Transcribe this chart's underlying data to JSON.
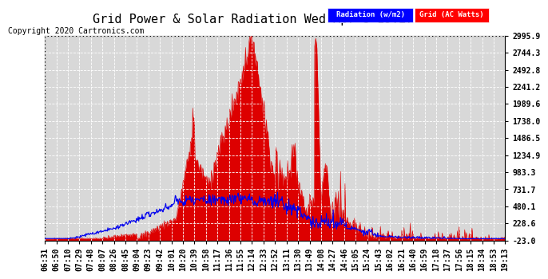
{
  "title": "Grid Power & Solar Radiation Wed Apr 8 19:27",
  "copyright": "Copyright 2020 Cartronics.com",
  "legend_radiation": "Radiation (w/m2)",
  "legend_grid": "Grid (AC Watts)",
  "yticks": [
    -23.0,
    228.6,
    480.1,
    731.7,
    983.3,
    1234.9,
    1486.5,
    1738.0,
    1989.6,
    2241.2,
    2492.8,
    2744.3,
    2995.9
  ],
  "ymin": -23.0,
  "ymax": 2995.9,
  "bg_color": "#ffffff",
  "plot_bg_color": "#d8d8d8",
  "grid_color": "#ffffff",
  "radiation_color": "#0000ee",
  "grid_power_color": "#dd0000",
  "grid_power_fill": "#dd0000",
  "title_fontsize": 11,
  "copyright_fontsize": 7,
  "tick_fontsize": 7,
  "xtick_labels": [
    "06:31",
    "06:50",
    "07:10",
    "07:29",
    "07:48",
    "08:07",
    "08:26",
    "08:45",
    "09:04",
    "09:23",
    "09:42",
    "10:01",
    "10:20",
    "10:39",
    "10:58",
    "11:17",
    "11:36",
    "11:55",
    "12:14",
    "12:33",
    "12:52",
    "13:11",
    "13:30",
    "13:49",
    "14:08",
    "14:27",
    "14:46",
    "15:05",
    "15:24",
    "15:43",
    "16:02",
    "16:21",
    "16:40",
    "16:59",
    "17:18",
    "17:37",
    "17:56",
    "18:15",
    "18:34",
    "18:53",
    "19:13"
  ]
}
